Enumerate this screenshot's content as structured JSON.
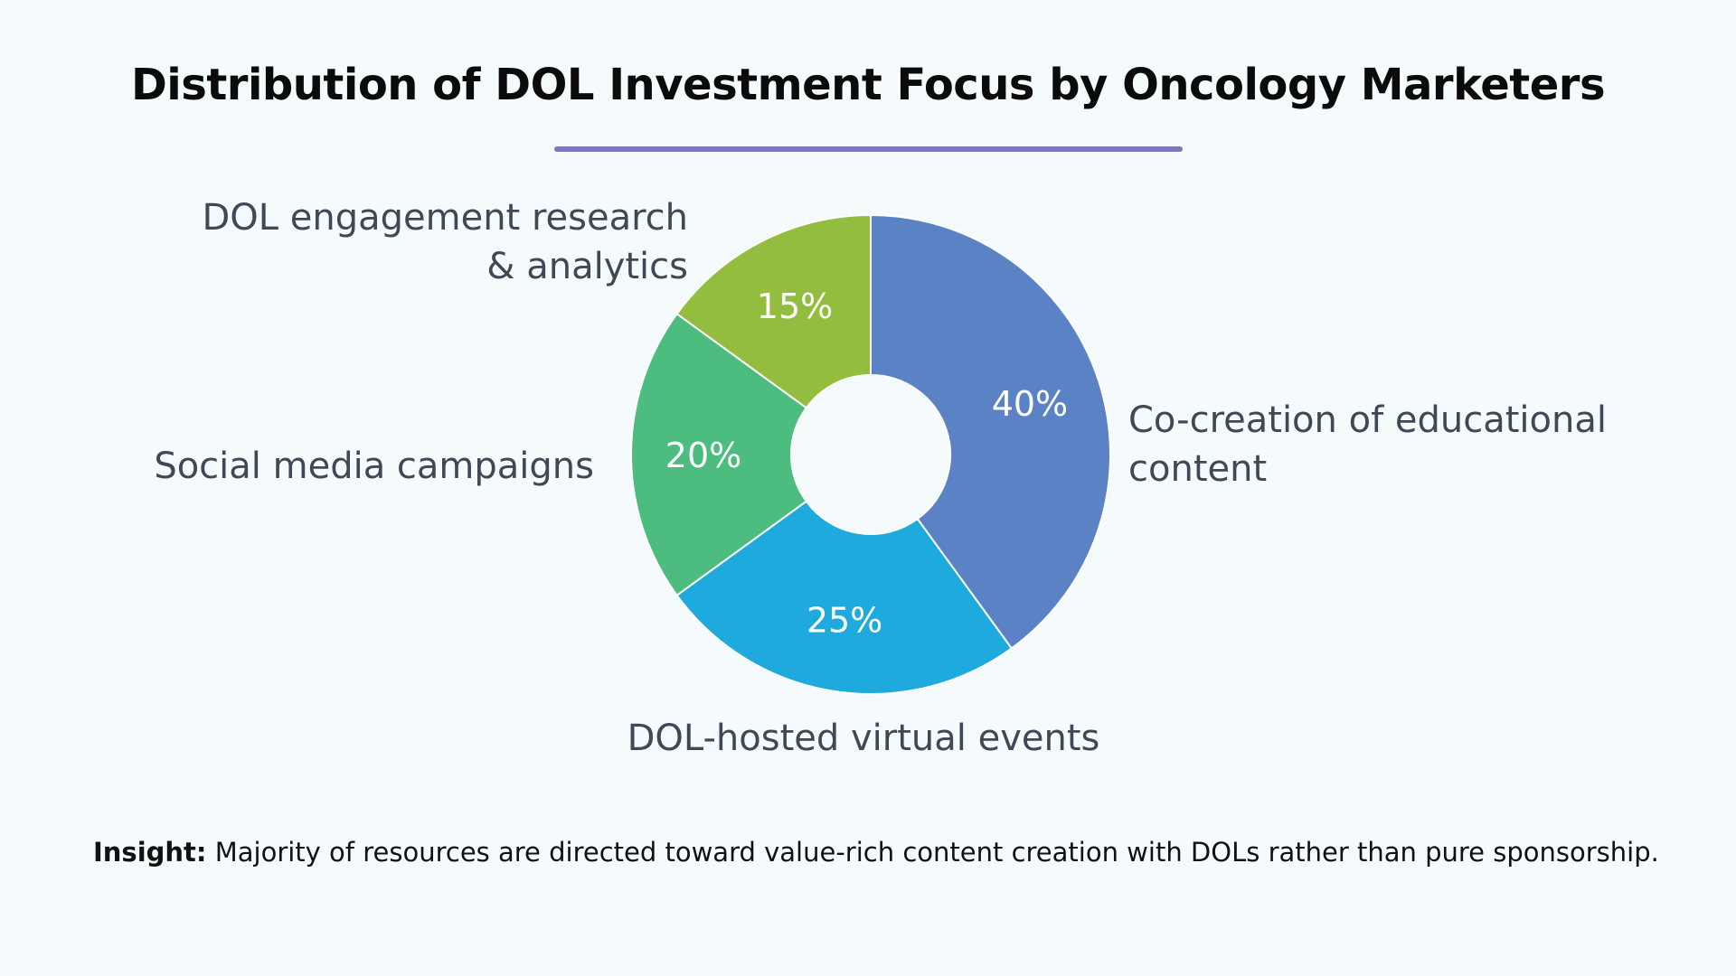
{
  "title": "Distribution of DOL Investment Focus by Oncology Marketers",
  "colors": {
    "background": "#f5fafd",
    "title_rule": "#8474bf",
    "label_text": "#3d4a55",
    "slice_label_text": "#ffffff"
  },
  "chart_data": {
    "type": "pie",
    "donut": true,
    "title": "Distribution of DOL Investment Focus by Oncology Marketers",
    "value_format": "percent",
    "slices": [
      {
        "label": "Co-creation of educational content",
        "value": 40,
        "value_label": "40%",
        "color": "#5b82c4"
      },
      {
        "label": "DOL-hosted virtual events",
        "value": 25,
        "value_label": "25%",
        "color": "#1eaadc"
      },
      {
        "label": "Social media campaigns",
        "value": 20,
        "value_label": "20%",
        "color": "#4dbd7f"
      },
      {
        "label": "DOL engagement research & analytics",
        "value": 15,
        "value_label": "15%",
        "color": "#93bd3f"
      }
    ]
  },
  "insight": {
    "label": "Insight:",
    "text": " Majority of resources are directed toward value-rich content creation with DOLs rather than pure sponsorship."
  }
}
